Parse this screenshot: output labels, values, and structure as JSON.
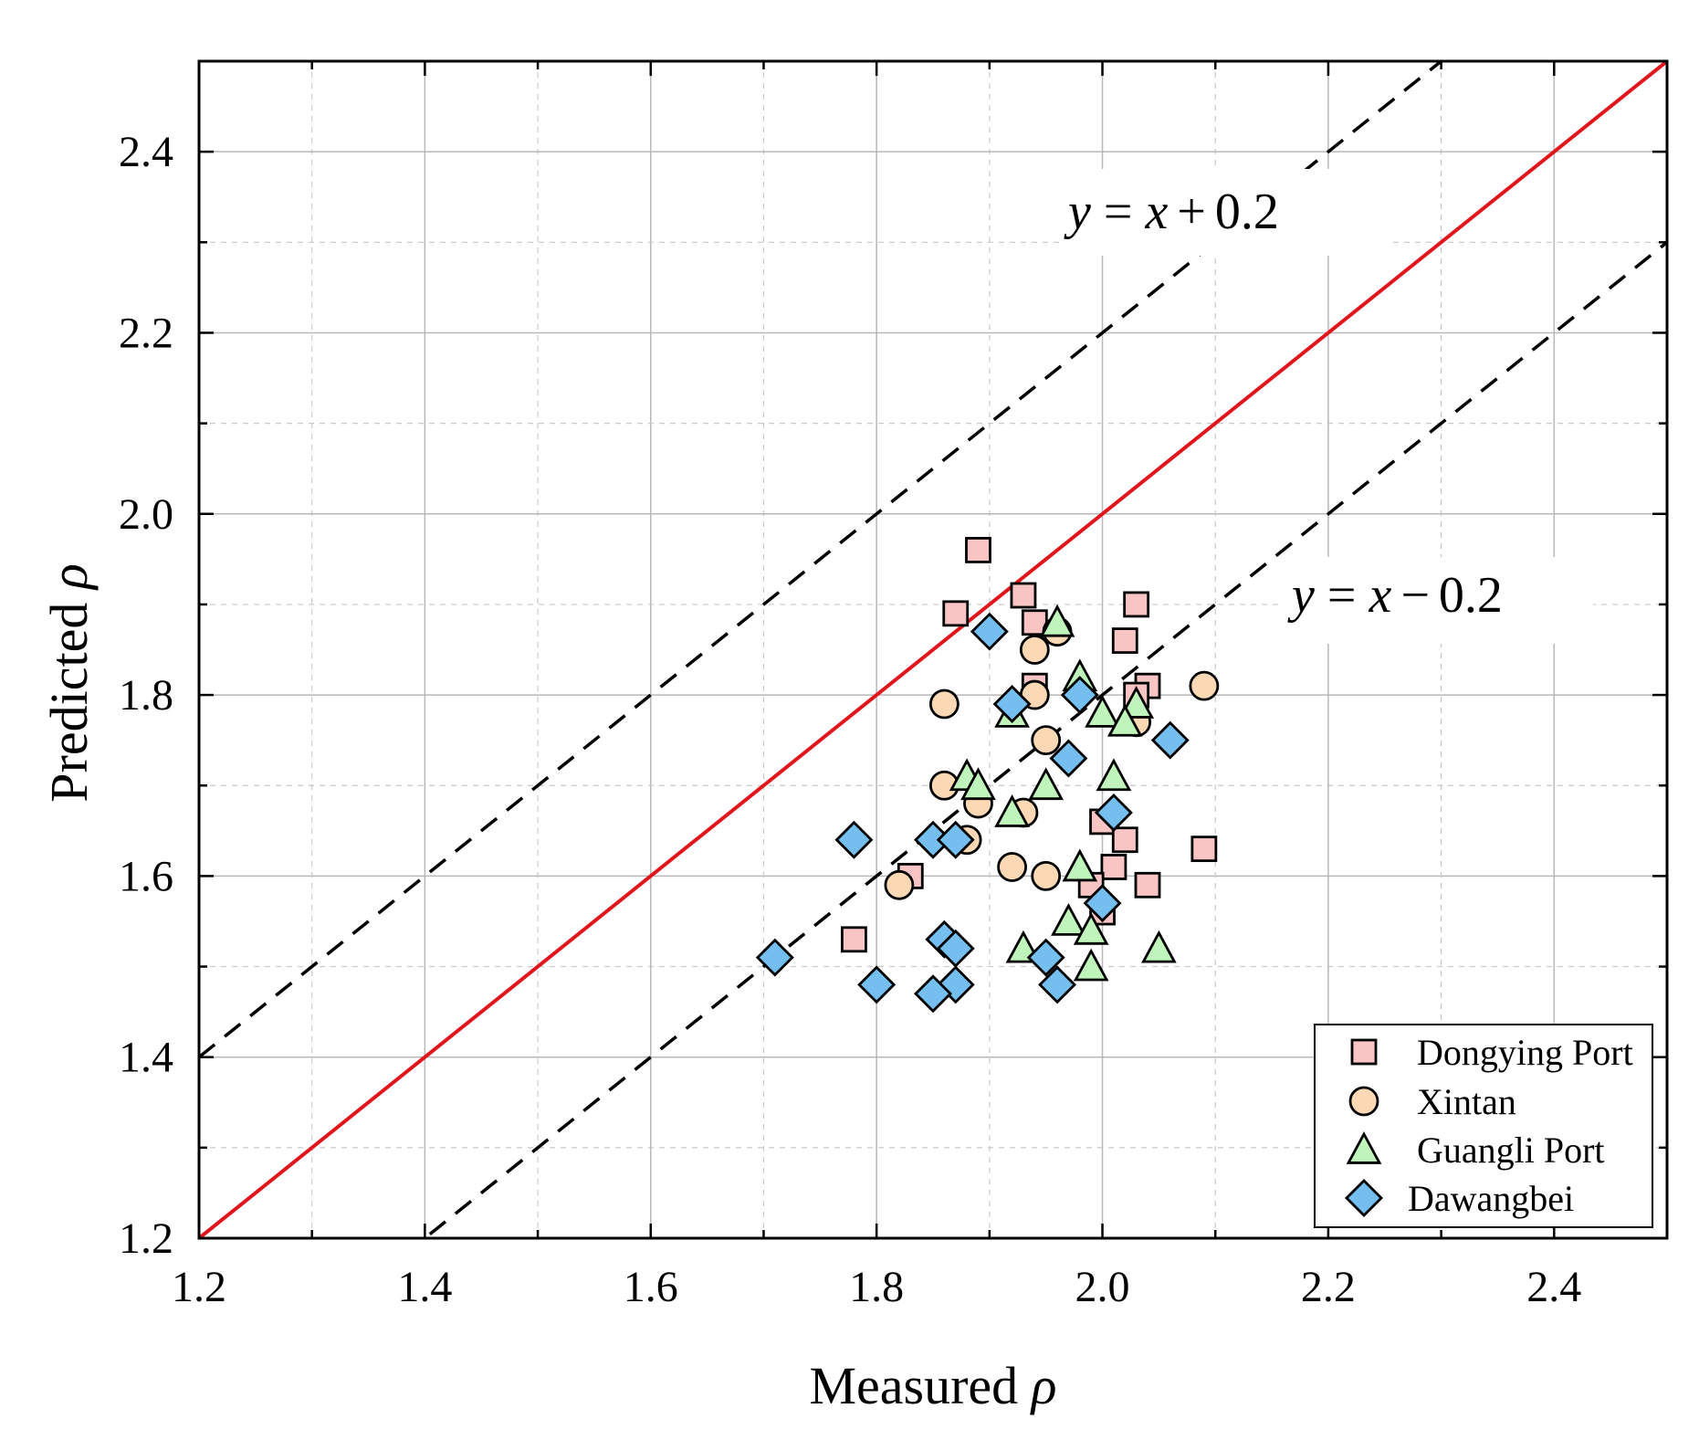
{
  "chart_data": {
    "type": "scatter",
    "xlabel": "Measured",
    "ylabel": "Predicted",
    "axis_symbol": "ρ",
    "xlim": [
      1.2,
      2.5
    ],
    "ylim": [
      1.2,
      2.5
    ],
    "xticks": [
      "1.2",
      "1.4",
      "1.6",
      "1.8",
      "2.0",
      "2.2",
      "2.4"
    ],
    "yticks": [
      "1.2",
      "1.4",
      "1.6",
      "1.8",
      "2.0",
      "2.2",
      "2.4"
    ],
    "grid": true,
    "legend_position": "bottom-right",
    "reference_lines": [
      {
        "label_y": "y",
        "label_eq": "=",
        "label_x": "x",
        "label_op": "+",
        "label_c": "0.2",
        "offset": 0.2,
        "style": "dashed",
        "color": "#000000"
      },
      {
        "label": "",
        "offset": 0.0,
        "style": "solid",
        "color": "#e0161c"
      },
      {
        "label_y": "y",
        "label_eq": "=",
        "label_x": "x",
        "label_op": "−",
        "label_c": "0.2",
        "offset": -0.2,
        "style": "dashed",
        "color": "#000000"
      }
    ],
    "series": [
      {
        "name": "Dongying Port",
        "marker": "square",
        "color": "#f9c4c4",
        "points": [
          [
            1.89,
            1.96
          ],
          [
            1.87,
            1.89
          ],
          [
            1.93,
            1.91
          ],
          [
            1.94,
            1.88
          ],
          [
            2.03,
            1.9
          ],
          [
            2.02,
            1.86
          ],
          [
            1.94,
            1.81
          ],
          [
            2.04,
            1.81
          ],
          [
            2.03,
            1.8
          ],
          [
            2.0,
            1.66
          ],
          [
            2.02,
            1.64
          ],
          [
            2.09,
            1.63
          ],
          [
            2.01,
            1.61
          ],
          [
            2.04,
            1.59
          ],
          [
            1.99,
            1.59
          ],
          [
            2.0,
            1.56
          ],
          [
            1.83,
            1.6
          ],
          [
            1.78,
            1.53
          ]
        ]
      },
      {
        "name": "Xintan",
        "marker": "circle",
        "color": "#fcd9b4",
        "points": [
          [
            1.96,
            1.87
          ],
          [
            1.94,
            1.85
          ],
          [
            1.94,
            1.8
          ],
          [
            2.09,
            1.81
          ],
          [
            1.86,
            1.79
          ],
          [
            1.95,
            1.75
          ],
          [
            2.03,
            1.77
          ],
          [
            1.86,
            1.7
          ],
          [
            1.89,
            1.68
          ],
          [
            1.93,
            1.67
          ],
          [
            1.88,
            1.64
          ],
          [
            1.92,
            1.61
          ],
          [
            1.95,
            1.6
          ],
          [
            1.82,
            1.59
          ]
        ]
      },
      {
        "name": "Guangli Port",
        "marker": "triangle",
        "color": "#bff5bb",
        "points": [
          [
            1.96,
            1.88
          ],
          [
            1.98,
            1.82
          ],
          [
            2.0,
            1.78
          ],
          [
            2.03,
            1.79
          ],
          [
            1.92,
            1.78
          ],
          [
            2.02,
            1.77
          ],
          [
            1.88,
            1.71
          ],
          [
            1.89,
            1.7
          ],
          [
            1.95,
            1.7
          ],
          [
            2.01,
            1.71
          ],
          [
            1.92,
            1.67
          ],
          [
            1.98,
            1.61
          ],
          [
            1.97,
            1.55
          ],
          [
            1.99,
            1.54
          ],
          [
            1.93,
            1.52
          ],
          [
            2.05,
            1.52
          ],
          [
            1.99,
            1.5
          ]
        ]
      },
      {
        "name": "Dawangbei",
        "marker": "diamond",
        "color": "#74bff0",
        "points": [
          [
            1.9,
            1.87
          ],
          [
            1.92,
            1.79
          ],
          [
            1.98,
            1.8
          ],
          [
            2.06,
            1.75
          ],
          [
            1.97,
            1.73
          ],
          [
            2.01,
            1.67
          ],
          [
            1.78,
            1.64
          ],
          [
            1.85,
            1.64
          ],
          [
            1.87,
            1.64
          ],
          [
            2.0,
            1.57
          ],
          [
            1.86,
            1.53
          ],
          [
            1.87,
            1.52
          ],
          [
            1.71,
            1.51
          ],
          [
            1.95,
            1.51
          ],
          [
            1.8,
            1.48
          ],
          [
            1.87,
            1.48
          ],
          [
            1.96,
            1.48
          ],
          [
            1.85,
            1.47
          ]
        ]
      }
    ]
  }
}
